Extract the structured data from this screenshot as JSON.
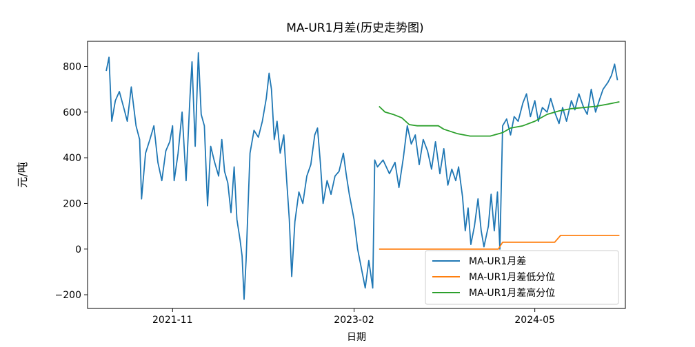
{
  "chart_data": {
    "type": "line",
    "title": "MA-UR1月差(历史走势图)",
    "xlabel": "日期",
    "ylabel": "元/吨",
    "x_ticks": [
      "2021-11",
      "2023-02",
      "2024-05"
    ],
    "x_range": [
      "2021-04-01",
      "2024-12-15"
    ],
    "ylim": [
      -260,
      910
    ],
    "y_ticks": [
      -200,
      0,
      200,
      400,
      600,
      800
    ],
    "grid": false,
    "legend_position": "lower-right",
    "series": [
      {
        "name": "MA-UR1月差",
        "color": "#1f77b4",
        "points": [
          [
            "2021-05-18",
            780
          ],
          [
            "2021-05-25",
            840
          ],
          [
            "2021-06-01",
            560
          ],
          [
            "2021-06-10",
            650
          ],
          [
            "2021-06-20",
            690
          ],
          [
            "2021-07-01",
            620
          ],
          [
            "2021-07-10",
            560
          ],
          [
            "2021-07-20",
            710
          ],
          [
            "2021-08-01",
            540
          ],
          [
            "2021-08-10",
            480
          ],
          [
            "2021-08-15",
            220
          ],
          [
            "2021-08-25",
            420
          ],
          [
            "2021-09-05",
            480
          ],
          [
            "2021-09-15",
            540
          ],
          [
            "2021-09-25",
            380
          ],
          [
            "2021-10-05",
            300
          ],
          [
            "2021-10-15",
            430
          ],
          [
            "2021-10-25",
            470
          ],
          [
            "2021-11-01",
            540
          ],
          [
            "2021-11-05",
            300
          ],
          [
            "2021-11-15",
            420
          ],
          [
            "2021-11-25",
            600
          ],
          [
            "2021-12-05",
            300
          ],
          [
            "2021-12-15",
            670
          ],
          [
            "2021-12-20",
            820
          ],
          [
            "2021-12-28",
            450
          ],
          [
            "2022-01-05",
            860
          ],
          [
            "2022-01-12",
            590
          ],
          [
            "2022-01-20",
            540
          ],
          [
            "2022-01-28",
            190
          ],
          [
            "2022-02-05",
            450
          ],
          [
            "2022-02-15",
            380
          ],
          [
            "2022-02-25",
            320
          ],
          [
            "2022-03-05",
            480
          ],
          [
            "2022-03-12",
            340
          ],
          [
            "2022-03-20",
            290
          ],
          [
            "2022-03-28",
            160
          ],
          [
            "2022-04-05",
            360
          ],
          [
            "2022-04-12",
            130
          ],
          [
            "2022-04-20",
            40
          ],
          [
            "2022-04-25",
            -30
          ],
          [
            "2022-04-30",
            -220
          ],
          [
            "2022-05-05",
            -50
          ],
          [
            "2022-05-15",
            420
          ],
          [
            "2022-05-25",
            520
          ],
          [
            "2022-06-05",
            490
          ],
          [
            "2022-06-15",
            560
          ],
          [
            "2022-06-25",
            660
          ],
          [
            "2022-07-02",
            770
          ],
          [
            "2022-07-08",
            700
          ],
          [
            "2022-07-15",
            480
          ],
          [
            "2022-07-22",
            560
          ],
          [
            "2022-07-30",
            420
          ],
          [
            "2022-08-08",
            500
          ],
          [
            "2022-08-15",
            310
          ],
          [
            "2022-08-22",
            130
          ],
          [
            "2022-08-28",
            -120
          ],
          [
            "2022-09-05",
            120
          ],
          [
            "2022-09-15",
            250
          ],
          [
            "2022-09-25",
            200
          ],
          [
            "2022-10-05",
            320
          ],
          [
            "2022-10-15",
            370
          ],
          [
            "2022-10-25",
            500
          ],
          [
            "2022-11-01",
            530
          ],
          [
            "2022-11-08",
            380
          ],
          [
            "2022-11-15",
            200
          ],
          [
            "2022-11-25",
            300
          ],
          [
            "2022-12-05",
            240
          ],
          [
            "2022-12-15",
            320
          ],
          [
            "2022-12-25",
            340
          ],
          [
            "2023-01-05",
            420
          ],
          [
            "2023-01-12",
            330
          ],
          [
            "2023-01-20",
            240
          ],
          [
            "2023-02-01",
            130
          ],
          [
            "2023-02-10",
            0
          ],
          [
            "2023-02-20",
            -90
          ],
          [
            "2023-03-01",
            -170
          ],
          [
            "2023-03-10",
            -50
          ],
          [
            "2023-03-20",
            -170
          ],
          [
            "2023-03-25",
            390
          ],
          [
            "2023-04-01",
            360
          ],
          [
            "2023-04-15",
            390
          ],
          [
            "2023-05-01",
            330
          ],
          [
            "2023-05-15",
            380
          ],
          [
            "2023-05-25",
            270
          ],
          [
            "2023-06-05",
            400
          ],
          [
            "2023-06-15",
            540
          ],
          [
            "2023-06-25",
            460
          ],
          [
            "2023-07-05",
            500
          ],
          [
            "2023-07-15",
            370
          ],
          [
            "2023-07-25",
            480
          ],
          [
            "2023-08-05",
            430
          ],
          [
            "2023-08-15",
            350
          ],
          [
            "2023-08-25",
            470
          ],
          [
            "2023-09-05",
            330
          ],
          [
            "2023-09-15",
            440
          ],
          [
            "2023-09-25",
            280
          ],
          [
            "2023-10-05",
            350
          ],
          [
            "2023-10-15",
            300
          ],
          [
            "2023-10-22",
            360
          ],
          [
            "2023-11-01",
            230
          ],
          [
            "2023-11-08",
            80
          ],
          [
            "2023-11-15",
            180
          ],
          [
            "2023-11-22",
            20
          ],
          [
            "2023-12-01",
            100
          ],
          [
            "2023-12-10",
            220
          ],
          [
            "2023-12-18",
            80
          ],
          [
            "2023-12-25",
            10
          ],
          [
            "2024-01-05",
            100
          ],
          [
            "2024-01-12",
            240
          ],
          [
            "2024-01-20",
            80
          ],
          [
            "2024-01-28",
            250
          ],
          [
            "2024-02-03",
            0
          ],
          [
            "2024-02-10",
            540
          ],
          [
            "2024-02-20",
            570
          ],
          [
            "2024-03-01",
            500
          ],
          [
            "2024-03-10",
            580
          ],
          [
            "2024-03-20",
            560
          ],
          [
            "2024-04-01",
            640
          ],
          [
            "2024-04-10",
            680
          ],
          [
            "2024-04-20",
            580
          ],
          [
            "2024-05-01",
            650
          ],
          [
            "2024-05-10",
            560
          ],
          [
            "2024-05-20",
            620
          ],
          [
            "2024-06-01",
            600
          ],
          [
            "2024-06-10",
            660
          ],
          [
            "2024-06-20",
            600
          ],
          [
            "2024-07-01",
            550
          ],
          [
            "2024-07-10",
            620
          ],
          [
            "2024-07-20",
            560
          ],
          [
            "2024-08-01",
            650
          ],
          [
            "2024-08-10",
            610
          ],
          [
            "2024-08-20",
            680
          ],
          [
            "2024-09-01",
            620
          ],
          [
            "2024-09-10",
            590
          ],
          [
            "2024-09-20",
            700
          ],
          [
            "2024-10-01",
            600
          ],
          [
            "2024-10-10",
            650
          ],
          [
            "2024-10-20",
            700
          ],
          [
            "2024-11-01",
            730
          ],
          [
            "2024-11-10",
            760
          ],
          [
            "2024-11-18",
            810
          ],
          [
            "2024-11-25",
            740
          ]
        ]
      },
      {
        "name": "MA-UR1月差低分位",
        "color": "#ff7f0e",
        "points": [
          [
            "2023-04-05",
            0
          ],
          [
            "2024-01-30",
            0
          ],
          [
            "2024-02-10",
            30
          ],
          [
            "2024-06-20",
            30
          ],
          [
            "2024-07-05",
            60
          ],
          [
            "2024-11-30",
            60
          ]
        ]
      },
      {
        "name": "MA-UR1月差高分位",
        "color": "#2ca02c",
        "points": [
          [
            "2023-04-05",
            625
          ],
          [
            "2023-04-20",
            600
          ],
          [
            "2023-05-10",
            590
          ],
          [
            "2023-06-01",
            575
          ],
          [
            "2023-06-20",
            545
          ],
          [
            "2023-07-10",
            540
          ],
          [
            "2023-09-01",
            540
          ],
          [
            "2023-09-15",
            525
          ],
          [
            "2023-10-20",
            505
          ],
          [
            "2023-11-20",
            495
          ],
          [
            "2024-01-10",
            495
          ],
          [
            "2024-02-10",
            510
          ],
          [
            "2024-03-01",
            530
          ],
          [
            "2024-04-01",
            540
          ],
          [
            "2024-05-01",
            560
          ],
          [
            "2024-06-01",
            590
          ],
          [
            "2024-07-01",
            605
          ],
          [
            "2024-08-01",
            615
          ],
          [
            "2024-09-01",
            620
          ],
          [
            "2024-10-01",
            625
          ],
          [
            "2024-11-01",
            635
          ],
          [
            "2024-11-30",
            645
          ]
        ]
      }
    ]
  }
}
